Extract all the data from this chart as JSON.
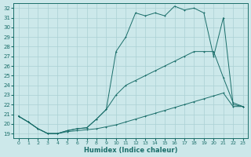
{
  "xlabel": "Humidex (Indice chaleur)",
  "bg_color": "#cce8ea",
  "grid_color": "#aad0d4",
  "line_color": "#1a6e6a",
  "xlim": [
    -0.5,
    23.5
  ],
  "ylim": [
    18.5,
    32.5
  ],
  "xticks": [
    0,
    1,
    2,
    3,
    4,
    5,
    6,
    7,
    8,
    9,
    10,
    11,
    12,
    13,
    14,
    15,
    16,
    17,
    18,
    19,
    20,
    21,
    22,
    23
  ],
  "yticks": [
    19,
    20,
    21,
    22,
    23,
    24,
    25,
    26,
    27,
    28,
    29,
    30,
    31,
    32
  ],
  "series1_x": [
    0,
    1,
    2,
    3,
    4,
    5,
    6,
    7,
    8,
    9,
    10,
    11,
    12,
    13,
    14,
    15,
    16,
    17,
    18,
    19,
    20,
    21,
    22,
    23
  ],
  "series1_y": [
    20.8,
    20.2,
    19.5,
    19.0,
    19.0,
    19.2,
    19.3,
    19.4,
    19.5,
    19.7,
    19.9,
    20.2,
    20.5,
    20.8,
    21.1,
    21.4,
    21.7,
    22.0,
    22.3,
    22.6,
    22.9,
    23.2,
    21.8,
    21.8
  ],
  "series2_x": [
    0,
    1,
    2,
    3,
    4,
    5,
    6,
    7,
    8,
    9,
    10,
    11,
    12,
    13,
    14,
    15,
    16,
    17,
    18,
    19,
    20,
    21,
    22,
    23
  ],
  "series2_y": [
    20.8,
    20.2,
    19.5,
    19.0,
    19.0,
    19.3,
    19.5,
    19.6,
    20.5,
    21.5,
    23.0,
    24.0,
    24.5,
    25.0,
    25.5,
    26.0,
    26.5,
    27.0,
    27.5,
    27.5,
    27.5,
    24.8,
    22.2,
    21.8
  ],
  "series3_x": [
    0,
    1,
    2,
    3,
    4,
    5,
    6,
    7,
    8,
    9,
    10,
    11,
    12,
    13,
    14,
    15,
    16,
    17,
    18,
    19,
    20,
    21,
    22,
    23
  ],
  "series3_y": [
    20.8,
    20.2,
    19.5,
    19.0,
    19.0,
    19.3,
    19.5,
    19.6,
    20.5,
    21.5,
    27.5,
    29.0,
    31.5,
    31.2,
    31.5,
    31.2,
    32.2,
    31.8,
    32.0,
    31.5,
    27.0,
    31.0,
    22.0,
    21.8
  ]
}
